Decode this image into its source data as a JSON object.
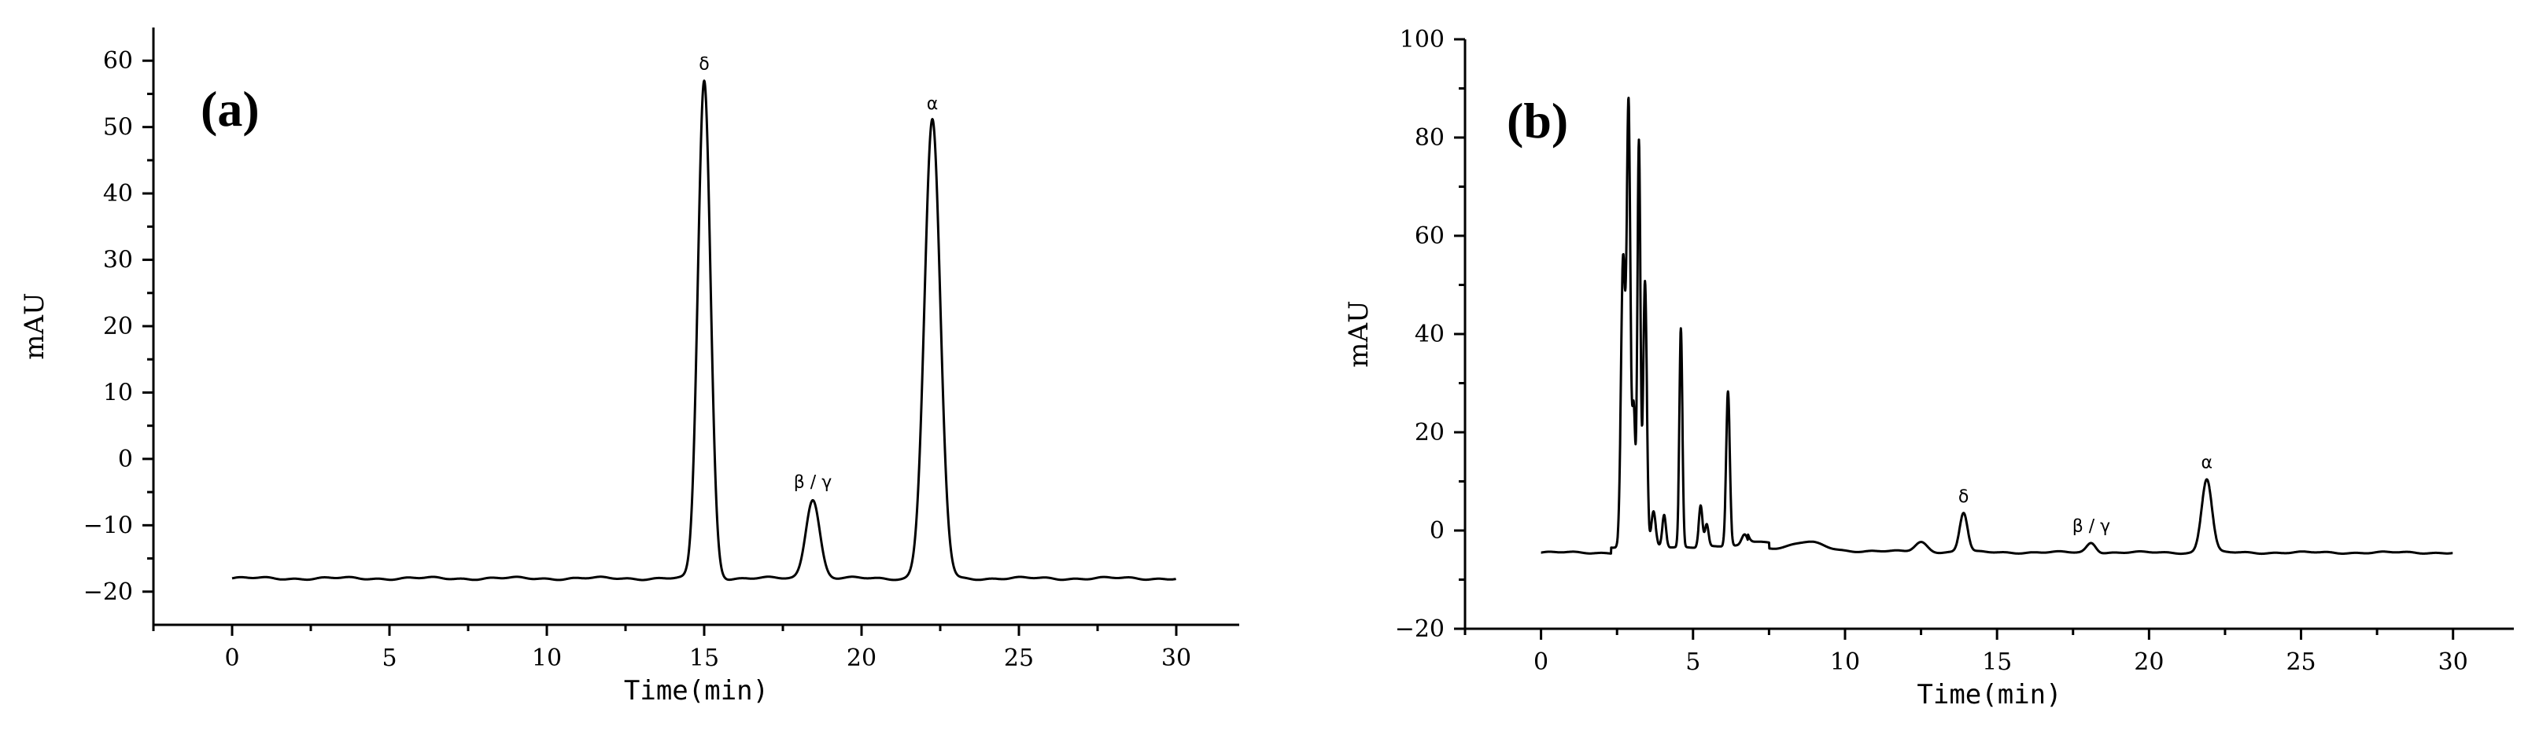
{
  "chart_data": [
    {
      "type": "line",
      "panel_label": "(a)",
      "xlabel": "Time(min)",
      "ylabel": "mAU",
      "xlim": [
        -2.5,
        32
      ],
      "ylim": [
        -25,
        65
      ],
      "xticks": [
        0,
        5,
        10,
        15,
        20,
        25,
        30
      ],
      "yticks": [
        -20,
        -10,
        0,
        10,
        20,
        30,
        40,
        50,
        60
      ],
      "xtick_labels": [
        "0",
        "5",
        "10",
        "15",
        "20",
        "25",
        "30"
      ],
      "ytick_labels": [
        "−20",
        "−10",
        "0",
        "10",
        "20",
        "30",
        "40",
        "50",
        "60"
      ],
      "baseline": -18,
      "peaks": [
        {
          "label": "δ",
          "x": 15.0,
          "y": 57.0,
          "width": 0.2
        },
        {
          "label": "β / γ",
          "x": 18.45,
          "y": -6.0,
          "width": 0.22
        },
        {
          "label": "α",
          "x": 22.25,
          "y": 51.0,
          "width": 0.25
        }
      ]
    },
    {
      "type": "line",
      "panel_label": "(b)",
      "xlabel": "Time(min)",
      "ylabel": "mAU",
      "xlim": [
        -2.5,
        32
      ],
      "ylim": [
        -20,
        100
      ],
      "xticks": [
        0,
        5,
        10,
        15,
        20,
        25,
        30
      ],
      "yticks": [
        -20,
        0,
        20,
        40,
        60,
        80,
        100
      ],
      "xtick_labels": [
        "0",
        "5",
        "10",
        "15",
        "20",
        "25",
        "30"
      ],
      "ytick_labels": [
        "−20",
        "0",
        "20",
        "40",
        "60",
        "80",
        "100"
      ],
      "baseline": -4.5,
      "peaks": [
        {
          "label": "δ",
          "x": 13.9,
          "y": 3.5,
          "width": 0.13
        },
        {
          "label": "β / γ",
          "x": 18.1,
          "y": -2.5,
          "width": 0.15
        },
        {
          "label": "α",
          "x": 21.9,
          "y": 10.5,
          "width": 0.17
        }
      ],
      "early_peaks": [
        {
          "x": 2.7,
          "y": 54.0,
          "width": 0.07
        },
        {
          "x": 2.88,
          "y": 84.5,
          "width": 0.06
        },
        {
          "x": 3.05,
          "y": 23.0,
          "width": 0.05
        },
        {
          "x": 3.22,
          "y": 78.0,
          "width": 0.05
        },
        {
          "x": 3.42,
          "y": 49.5,
          "width": 0.06
        },
        {
          "x": 3.7,
          "y": 2.5,
          "width": 0.07
        },
        {
          "x": 4.05,
          "y": 2.0,
          "width": 0.06
        },
        {
          "x": 4.6,
          "y": 40.0,
          "width": 0.05
        },
        {
          "x": 5.25,
          "y": 4.0,
          "width": 0.06
        },
        {
          "x": 5.45,
          "y": 0.0,
          "width": 0.06
        },
        {
          "x": 6.15,
          "y": 27.0,
          "width": 0.06
        },
        {
          "x": 6.7,
          "y": -2.0,
          "width": 0.1
        },
        {
          "x": 8.8,
          "y": -3.0,
          "width": 0.5
        },
        {
          "x": 12.5,
          "y": -2.5,
          "width": 0.2
        }
      ]
    }
  ]
}
